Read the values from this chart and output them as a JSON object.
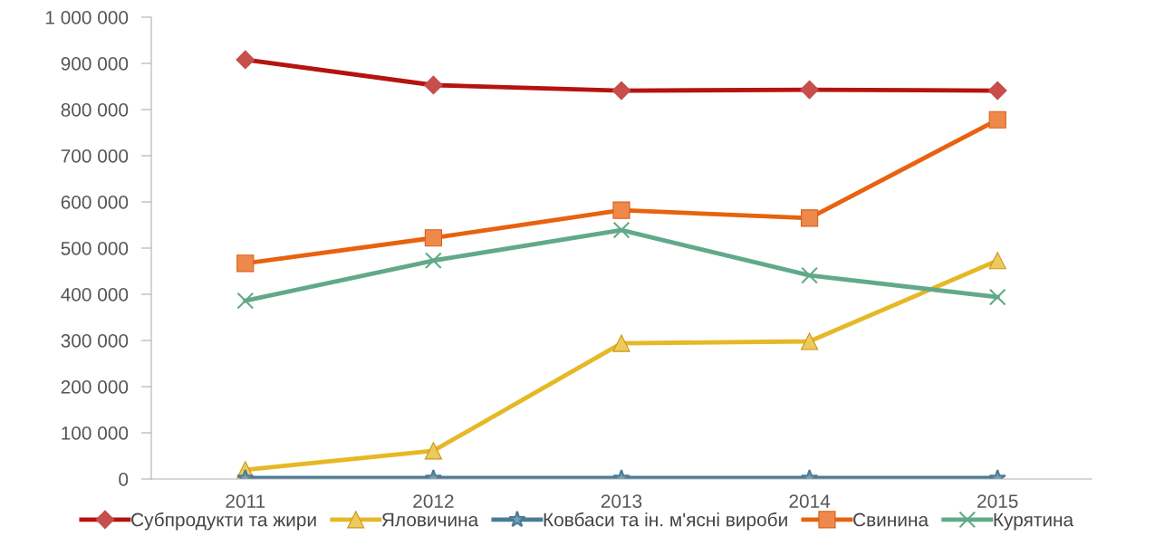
{
  "chart_data": {
    "type": "line",
    "categories": [
      "2011",
      "2012",
      "2013",
      "2014",
      "2015"
    ],
    "series": [
      {
        "name": "Субпродукти та жири",
        "color": "#b5130f",
        "marker": "diamond",
        "values": [
          908000,
          853000,
          841000,
          843000,
          841000
        ]
      },
      {
        "name": "Яловичина",
        "color": "#e5b826",
        "marker": "triangle",
        "values": [
          20000,
          61000,
          294000,
          298000,
          473000
        ]
      },
      {
        "name": "Ковбаси та ін. м'ясні вироби",
        "color": "#4a7c97",
        "marker": "star",
        "values": [
          2000,
          2000,
          2000,
          2000,
          2000
        ]
      },
      {
        "name": "Свинина",
        "color": "#e8620f",
        "marker": "square",
        "values": [
          467000,
          522000,
          582000,
          565000,
          778000
        ]
      },
      {
        "name": "Курятина",
        "color": "#61a98a",
        "marker": "cross",
        "values": [
          386000,
          473000,
          539000,
          441000,
          394000
        ]
      }
    ],
    "ylim": [
      0,
      1000000
    ],
    "yticks": [
      0,
      {
        "value": 100000,
        "label": "100 000"
      },
      {
        "value": 200000,
        "label": "200 000"
      },
      {
        "value": 300000,
        "label": "300 000"
      },
      {
        "value": 400000,
        "label": "400 000"
      },
      {
        "value": 500000,
        "label": "500 000"
      },
      {
        "value": 600000,
        "label": "600 000"
      },
      {
        "value": 700000,
        "label": "700 000"
      },
      {
        "value": 800000,
        "label": "800 000"
      },
      {
        "value": 900000,
        "label": "900 000"
      },
      {
        "value": 1000000,
        "label": "1 000 000"
      }
    ],
    "grid": false,
    "legend": "bottom",
    "line_style": "solid"
  }
}
